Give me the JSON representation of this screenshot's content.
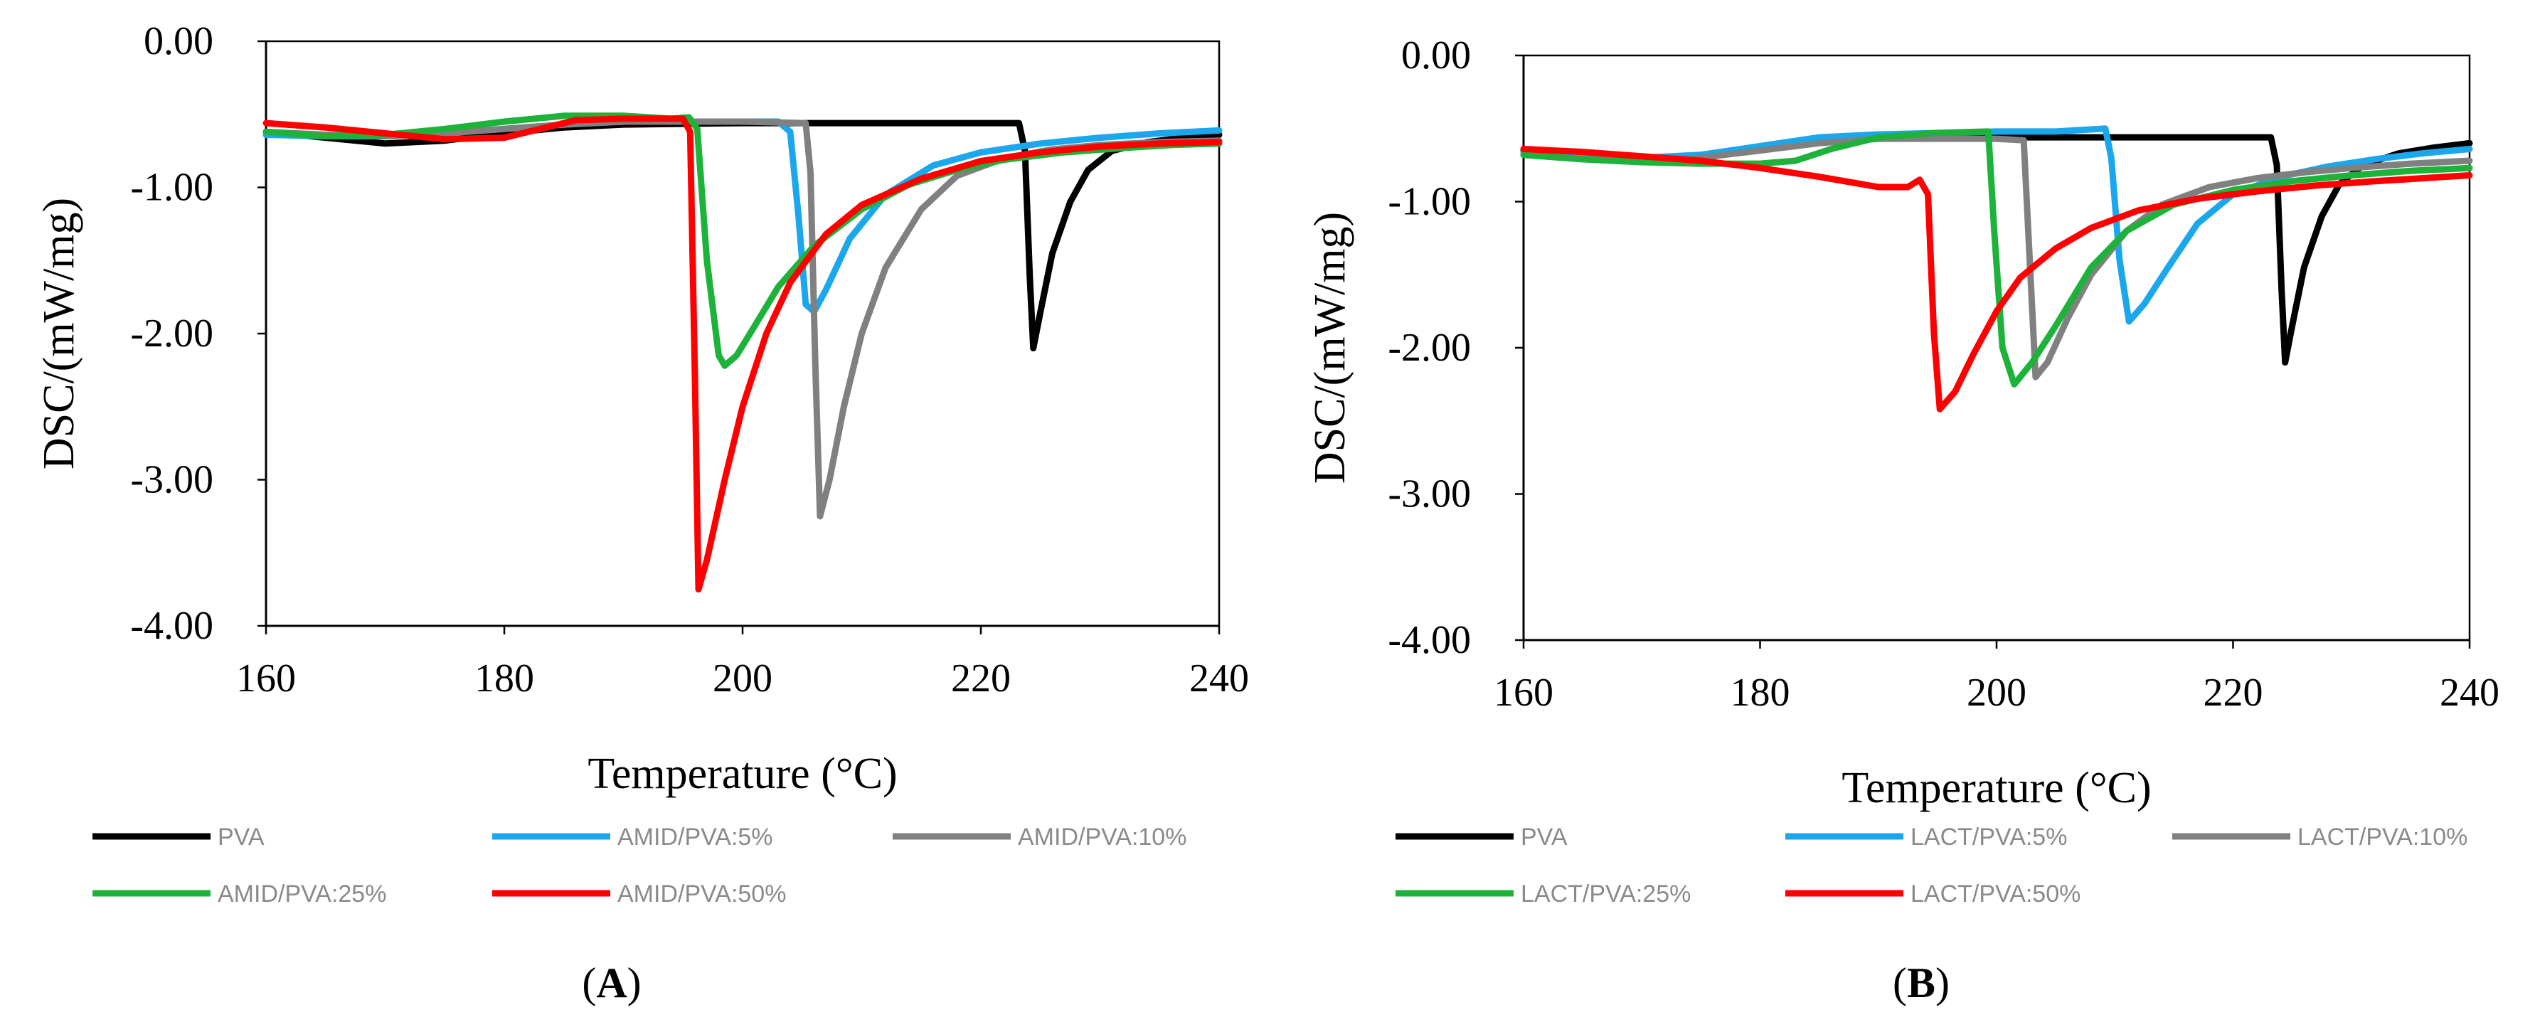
{
  "chart_data": [
    {
      "type": "line",
      "panel_label": "A",
      "xlabel": "Temperature (°C)",
      "ylabel": "DSC/(mW/mg)",
      "xlim": [
        160,
        240
      ],
      "ylim": [
        -4,
        0
      ],
      "xticks": [
        160,
        180,
        200,
        220,
        240
      ],
      "yticks": [
        0,
        -1,
        -2,
        -3,
        -4
      ],
      "xtick_labels": [
        "160",
        "180",
        "200",
        "220",
        "240"
      ],
      "ytick_labels": [
        "0.00",
        "-1.00",
        "-2.00",
        "-3.00",
        "-4.00"
      ],
      "grid": false,
      "legend_position": "bottom",
      "series": [
        {
          "name": "PVA",
          "color": "#000000",
          "points": [
            [
              160,
              -0.62
            ],
            [
              165,
              -0.66
            ],
            [
              170,
              -0.7
            ],
            [
              175,
              -0.68
            ],
            [
              180,
              -0.63
            ],
            [
              185,
              -0.59
            ],
            [
              190,
              -0.57
            ],
            [
              200,
              -0.56
            ],
            [
              210,
              -0.56
            ],
            [
              220,
              -0.56
            ],
            [
              223.2,
              -0.56
            ],
            [
              223.7,
              -0.75
            ],
            [
              224.1,
              -1.6
            ],
            [
              224.4,
              -2.1
            ],
            [
              225,
              -1.85
            ],
            [
              226,
              -1.45
            ],
            [
              227.5,
              -1.1
            ],
            [
              229,
              -0.88
            ],
            [
              231,
              -0.75
            ],
            [
              234,
              -0.69
            ],
            [
              237,
              -0.66
            ],
            [
              240,
              -0.64
            ]
          ]
        },
        {
          "name": "AMID/PVA:5%",
          "color": "#1AA7EC",
          "points": [
            [
              160,
              -0.64
            ],
            [
              165,
              -0.65
            ],
            [
              170,
              -0.65
            ],
            [
              175,
              -0.63
            ],
            [
              180,
              -0.6
            ],
            [
              185,
              -0.57
            ],
            [
              190,
              -0.55
            ],
            [
              196,
              -0.55
            ],
            [
              200,
              -0.55
            ],
            [
              203,
              -0.55
            ],
            [
              204,
              -0.62
            ],
            [
              204.7,
              -1.2
            ],
            [
              205.3,
              -1.8
            ],
            [
              206,
              -1.85
            ],
            [
              207,
              -1.7
            ],
            [
              209,
              -1.35
            ],
            [
              212,
              -1.05
            ],
            [
              216,
              -0.85
            ],
            [
              220,
              -0.76
            ],
            [
              225,
              -0.7
            ],
            [
              230,
              -0.66
            ],
            [
              235,
              -0.63
            ],
            [
              240,
              -0.61
            ]
          ]
        },
        {
          "name": "AMID/PVA:10%",
          "color": "#808080",
          "points": [
            [
              160,
              -0.62
            ],
            [
              165,
              -0.64
            ],
            [
              170,
              -0.65
            ],
            [
              175,
              -0.63
            ],
            [
              180,
              -0.6
            ],
            [
              185,
              -0.57
            ],
            [
              190,
              -0.55
            ],
            [
              200,
              -0.55
            ],
            [
              205.3,
              -0.56
            ],
            [
              205.7,
              -0.9
            ],
            [
              206.1,
              -2.2
            ],
            [
              206.5,
              -3.25
            ],
            [
              207.3,
              -3.0
            ],
            [
              208.5,
              -2.5
            ],
            [
              210,
              -2.0
            ],
            [
              212,
              -1.55
            ],
            [
              215,
              -1.15
            ],
            [
              218,
              -0.92
            ],
            [
              222,
              -0.8
            ],
            [
              226,
              -0.74
            ],
            [
              230,
              -0.71
            ],
            [
              235,
              -0.69
            ],
            [
              240,
              -0.68
            ]
          ]
        },
        {
          "name": "AMID/PVA:25%",
          "color": "#1DB33B",
          "points": [
            [
              160,
              -0.62
            ],
            [
              165,
              -0.65
            ],
            [
              170,
              -0.64
            ],
            [
              175,
              -0.6
            ],
            [
              180,
              -0.55
            ],
            [
              185,
              -0.51
            ],
            [
              190,
              -0.51
            ],
            [
              194,
              -0.53
            ],
            [
              195.5,
              -0.52
            ],
            [
              196.2,
              -0.6
            ],
            [
              197,
              -1.5
            ],
            [
              198,
              -2.15
            ],
            [
              198.5,
              -2.22
            ],
            [
              199.5,
              -2.15
            ],
            [
              201,
              -1.95
            ],
            [
              203,
              -1.68
            ],
            [
              206,
              -1.4
            ],
            [
              210,
              -1.15
            ],
            [
              214,
              -0.98
            ],
            [
              218,
              -0.88
            ],
            [
              222,
              -0.81
            ],
            [
              227,
              -0.76
            ],
            [
              232,
              -0.73
            ],
            [
              236,
              -0.71
            ],
            [
              240,
              -0.7
            ]
          ]
        },
        {
          "name": "AMID/PVA:50%",
          "color": "#FF0000",
          "points": [
            [
              160,
              -0.56
            ],
            [
              165,
              -0.59
            ],
            [
              170,
              -0.63
            ],
            [
              175,
              -0.67
            ],
            [
              180,
              -0.66
            ],
            [
              183,
              -0.6
            ],
            [
              186,
              -0.54
            ],
            [
              190,
              -0.53
            ],
            [
              195,
              -0.53
            ],
            [
              195.6,
              -0.62
            ],
            [
              196,
              -2.3
            ],
            [
              196.3,
              -3.75
            ],
            [
              197,
              -3.55
            ],
            [
              198.5,
              -3.0
            ],
            [
              200,
              -2.5
            ],
            [
              202,
              -2.0
            ],
            [
              204,
              -1.65
            ],
            [
              207,
              -1.32
            ],
            [
              210,
              -1.12
            ],
            [
              215,
              -0.94
            ],
            [
              220,
              -0.82
            ],
            [
              225,
              -0.76
            ],
            [
              230,
              -0.72
            ],
            [
              235,
              -0.7
            ],
            [
              240,
              -0.69
            ]
          ]
        }
      ],
      "legend": [
        {
          "label": "PVA",
          "color": "#000000"
        },
        {
          "label": "AMID/PVA:5%",
          "color": "#1AA7EC"
        },
        {
          "label": "AMID/PVA:10%",
          "color": "#808080"
        },
        {
          "label": "AMID/PVA:25%",
          "color": "#1DB33B"
        },
        {
          "label": "AMID/PVA:50%",
          "color": "#FF0000"
        }
      ]
    },
    {
      "type": "line",
      "panel_label": "B",
      "xlabel": "Temperature (°C)",
      "ylabel": "DSC/(mW/mg)",
      "xlim": [
        160,
        240
      ],
      "ylim": [
        -4,
        0
      ],
      "xticks": [
        160,
        180,
        200,
        220,
        240
      ],
      "yticks": [
        0,
        -1,
        -2,
        -3,
        -4
      ],
      "xtick_labels": [
        "160",
        "180",
        "200",
        "220",
        "240"
      ],
      "ytick_labels": [
        "0.00",
        "-1.00",
        "-2.00",
        "-3.00",
        "-4.00"
      ],
      "grid": false,
      "legend_position": "bottom",
      "series": [
        {
          "name": "PVA",
          "color": "#000000",
          "points": [
            [
              160,
              -0.65
            ],
            [
              165,
              -0.68
            ],
            [
              170,
              -0.71
            ],
            [
              175,
              -0.68
            ],
            [
              180,
              -0.63
            ],
            [
              185,
              -0.59
            ],
            [
              190,
              -0.57
            ],
            [
              200,
              -0.56
            ],
            [
              210,
              -0.56
            ],
            [
              220,
              -0.56
            ],
            [
              223.2,
              -0.56
            ],
            [
              223.7,
              -0.75
            ],
            [
              224.1,
              -1.6
            ],
            [
              224.4,
              -2.1
            ],
            [
              225,
              -1.85
            ],
            [
              226,
              -1.45
            ],
            [
              227.5,
              -1.1
            ],
            [
              229,
              -0.88
            ],
            [
              231,
              -0.75
            ],
            [
              234,
              -0.67
            ],
            [
              237,
              -0.63
            ],
            [
              240,
              -0.6
            ]
          ]
        },
        {
          "name": "LACT/PVA:5%",
          "color": "#1AA7EC",
          "points": [
            [
              160,
              -0.66
            ],
            [
              165,
              -0.69
            ],
            [
              170,
              -0.7
            ],
            [
              175,
              -0.68
            ],
            [
              180,
              -0.62
            ],
            [
              185,
              -0.56
            ],
            [
              190,
              -0.54
            ],
            [
              200,
              -0.52
            ],
            [
              205,
              -0.52
            ],
            [
              209.2,
              -0.5
            ],
            [
              209.7,
              -0.7
            ],
            [
              210.4,
              -1.4
            ],
            [
              211.2,
              -1.82
            ],
            [
              212.5,
              -1.7
            ],
            [
              214.5,
              -1.45
            ],
            [
              217,
              -1.15
            ],
            [
              220,
              -0.95
            ],
            [
              224,
              -0.83
            ],
            [
              228,
              -0.76
            ],
            [
              232,
              -0.71
            ],
            [
              236,
              -0.67
            ],
            [
              240,
              -0.64
            ]
          ]
        },
        {
          "name": "LACT/PVA:10%",
          "color": "#808080",
          "points": [
            [
              160,
              -0.68
            ],
            [
              165,
              -0.71
            ],
            [
              170,
              -0.73
            ],
            [
              175,
              -0.7
            ],
            [
              180,
              -0.65
            ],
            [
              185,
              -0.6
            ],
            [
              190,
              -0.57
            ],
            [
              200,
              -0.57
            ],
            [
              202.3,
              -0.58
            ],
            [
              202.8,
              -1.4
            ],
            [
              203.3,
              -2.2
            ],
            [
              204.3,
              -2.1
            ],
            [
              206,
              -1.8
            ],
            [
              208,
              -1.5
            ],
            [
              211,
              -1.2
            ],
            [
              214,
              -1.02
            ],
            [
              218,
              -0.9
            ],
            [
              222,
              -0.84
            ],
            [
              226,
              -0.8
            ],
            [
              230,
              -0.77
            ],
            [
              235,
              -0.74
            ],
            [
              240,
              -0.72
            ]
          ]
        },
        {
          "name": "LACT/PVA:25%",
          "color": "#1DB33B",
          "points": [
            [
              160,
              -0.68
            ],
            [
              165,
              -0.71
            ],
            [
              170,
              -0.73
            ],
            [
              175,
              -0.74
            ],
            [
              180,
              -0.74
            ],
            [
              183,
              -0.72
            ],
            [
              186,
              -0.64
            ],
            [
              190,
              -0.56
            ],
            [
              195,
              -0.53
            ],
            [
              199.3,
              -0.52
            ],
            [
              199.8,
              -1.2
            ],
            [
              200.5,
              -2.0
            ],
            [
              201.5,
              -2.25
            ],
            [
              203,
              -2.1
            ],
            [
              205,
              -1.85
            ],
            [
              208,
              -1.45
            ],
            [
              211,
              -1.2
            ],
            [
              215,
              -1.02
            ],
            [
              220,
              -0.92
            ],
            [
              225,
              -0.86
            ],
            [
              230,
              -0.82
            ],
            [
              235,
              -0.79
            ],
            [
              240,
              -0.77
            ]
          ]
        },
        {
          "name": "LACT/PVA:50%",
          "color": "#FF0000",
          "points": [
            [
              160,
              -0.64
            ],
            [
              165,
              -0.66
            ],
            [
              170,
              -0.69
            ],
            [
              175,
              -0.72
            ],
            [
              180,
              -0.77
            ],
            [
              185,
              -0.83
            ],
            [
              190,
              -0.9
            ],
            [
              192.5,
              -0.9
            ],
            [
              193.5,
              -0.85
            ],
            [
              194.2,
              -0.95
            ],
            [
              194.7,
              -1.9
            ],
            [
              195.2,
              -2.42
            ],
            [
              196.5,
              -2.3
            ],
            [
              198,
              -2.05
            ],
            [
              200,
              -1.75
            ],
            [
              202,
              -1.52
            ],
            [
              205,
              -1.32
            ],
            [
              208,
              -1.18
            ],
            [
              212,
              -1.06
            ],
            [
              217,
              -0.98
            ],
            [
              222,
              -0.93
            ],
            [
              227,
              -0.89
            ],
            [
              232,
              -0.86
            ],
            [
              236,
              -0.84
            ],
            [
              240,
              -0.82
            ]
          ]
        }
      ],
      "legend": [
        {
          "label": "PVA",
          "color": "#000000"
        },
        {
          "label": "LACT/PVA:5%",
          "color": "#1AA7EC"
        },
        {
          "label": "LACT/PVA:10%",
          "color": "#808080"
        },
        {
          "label": "LACT/PVA:25%",
          "color": "#1DB33B"
        },
        {
          "label": "LACT/PVA:50%",
          "color": "#FF0000"
        }
      ]
    }
  ]
}
